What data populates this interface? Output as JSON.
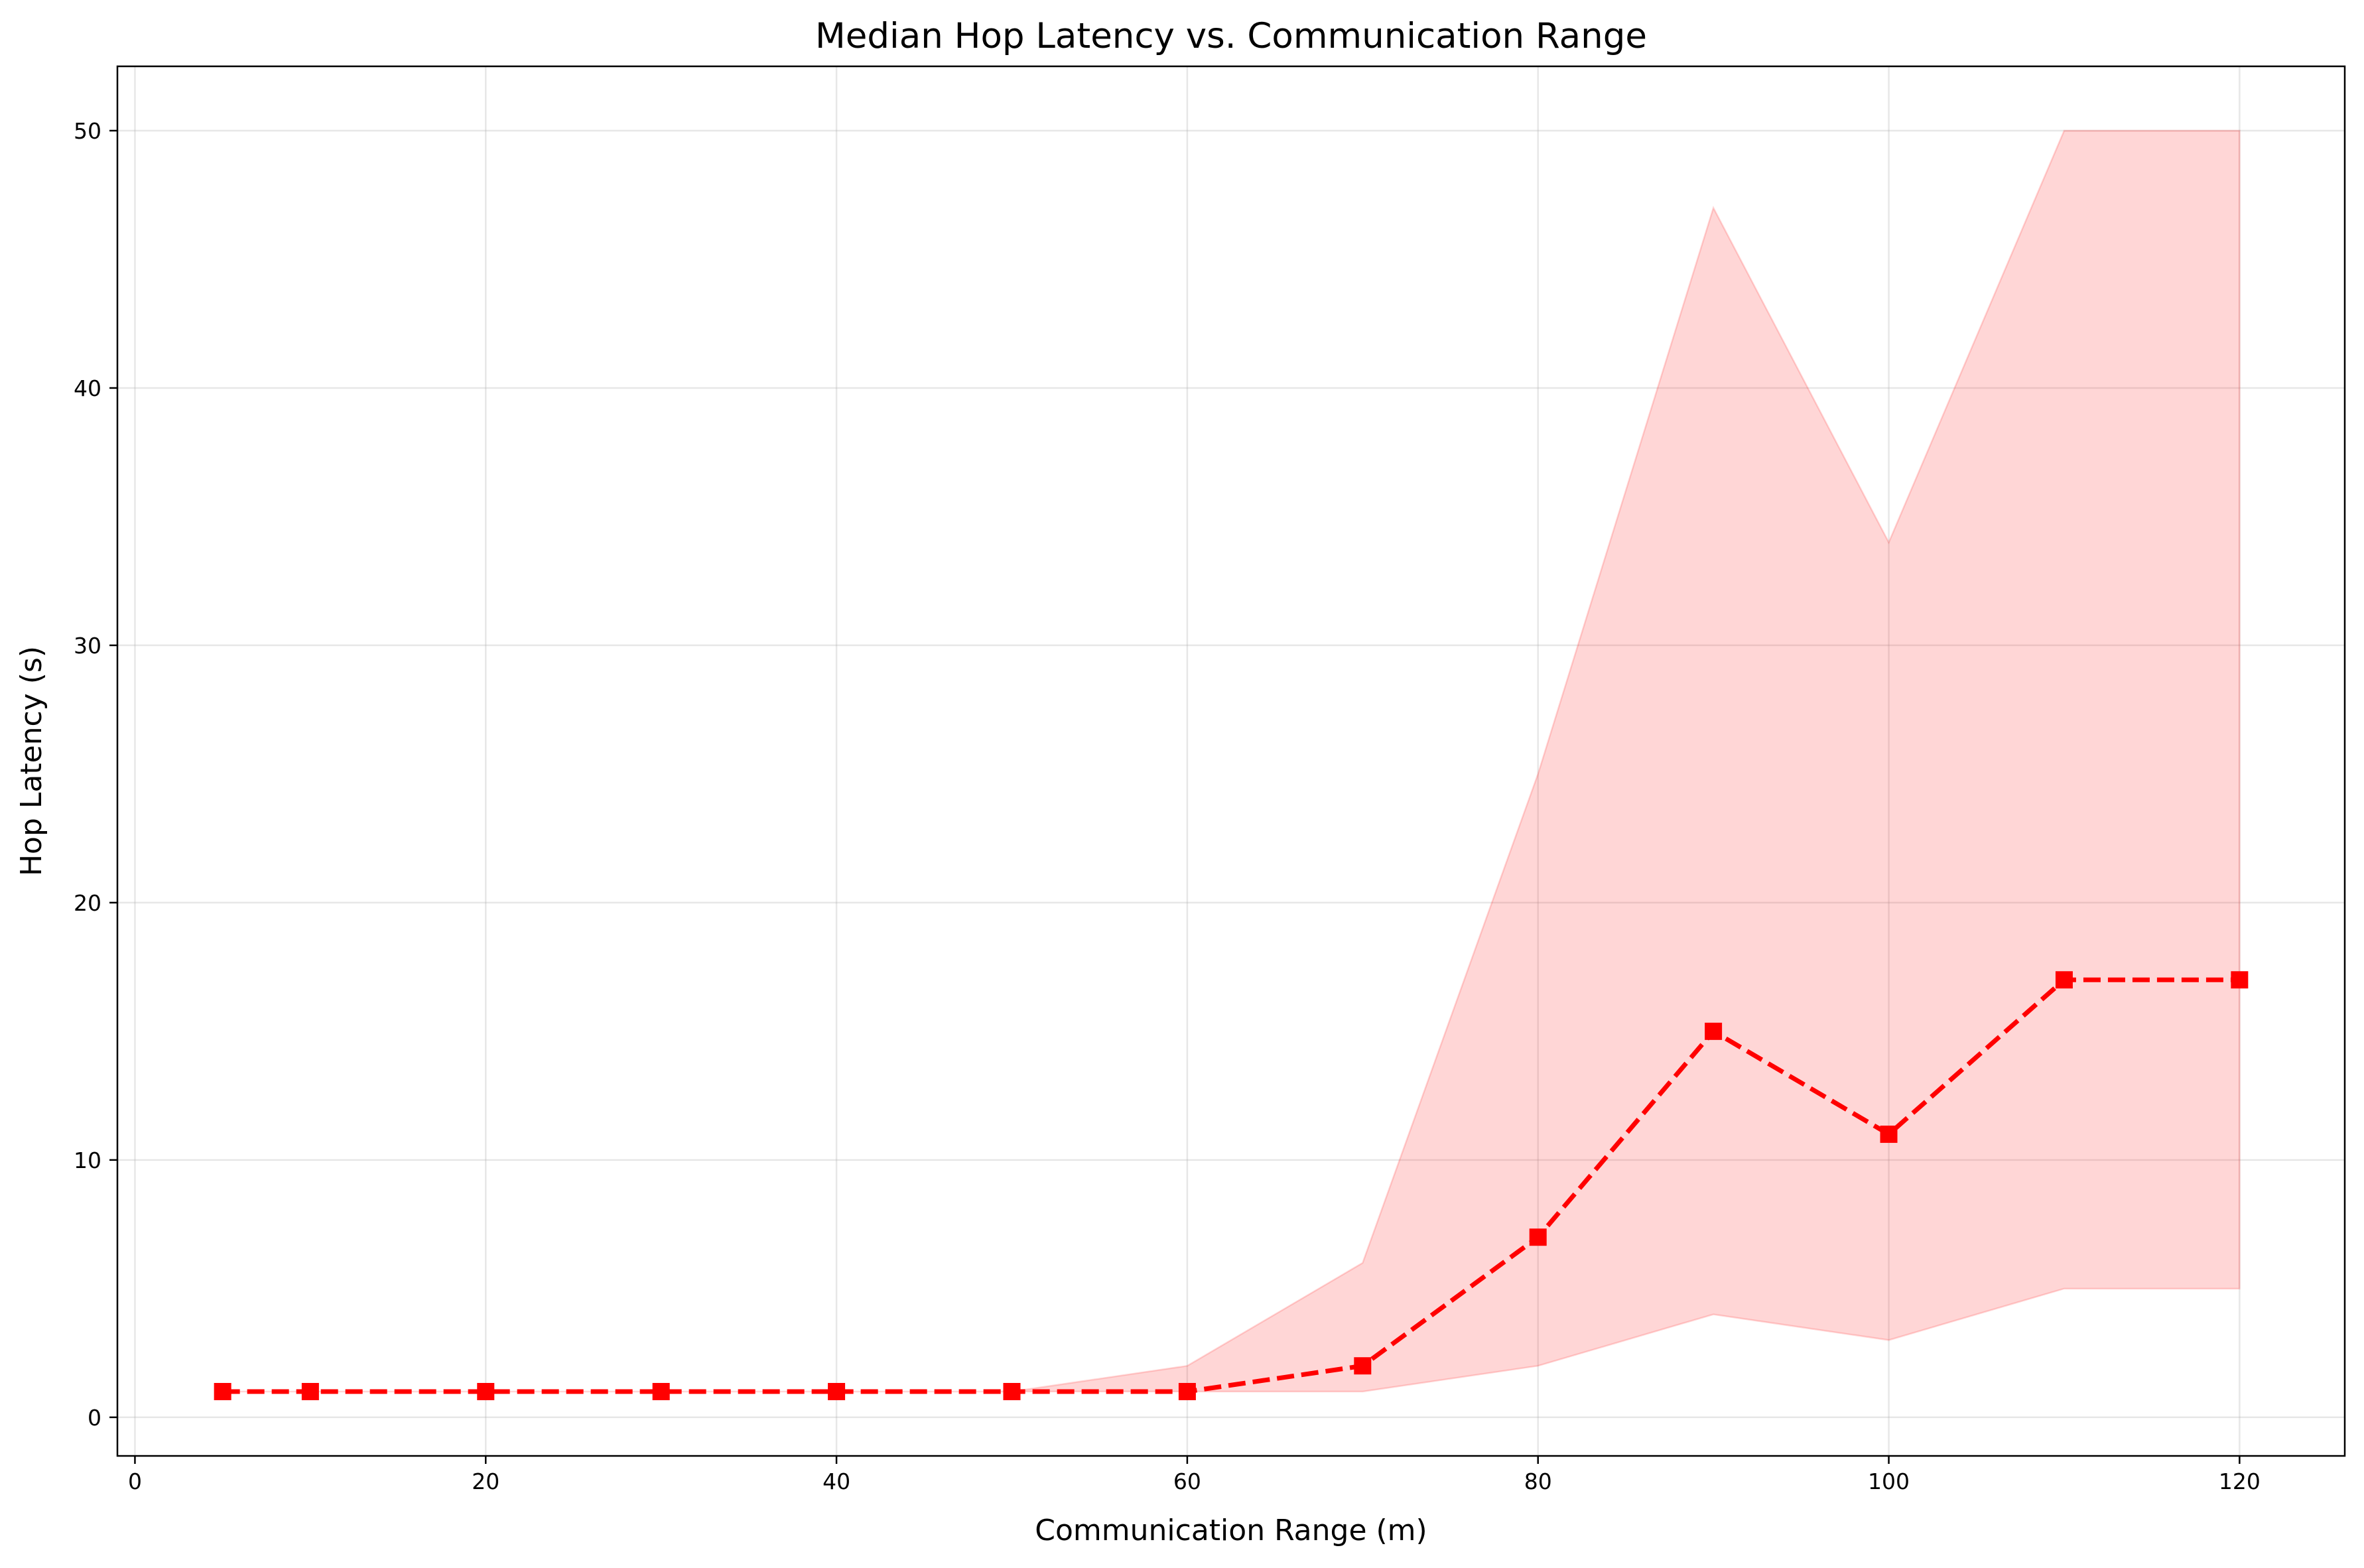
{
  "chart_data": {
    "type": "line",
    "title": "Median Hop Latency vs. Communication Range",
    "xlabel": "Communication Range (m)",
    "ylabel": "Hop Latency (s)",
    "xlim": [
      -1,
      126
    ],
    "ylim": [
      -1.5,
      52.5
    ],
    "xticks": [
      0,
      20,
      40,
      60,
      80,
      100,
      120
    ],
    "yticks": [
      0,
      10,
      20,
      30,
      40,
      50
    ],
    "grid": true,
    "legend": "none",
    "series": [
      {
        "x": [
          5,
          10,
          20,
          30,
          40,
          50,
          60,
          70,
          80,
          90,
          100,
          110,
          120
        ],
        "values": [
          1,
          1,
          1,
          1,
          1,
          1,
          1,
          2,
          7,
          15,
          11,
          17,
          17
        ],
        "lower": [
          1,
          1,
          1,
          1,
          1,
          1,
          1,
          1,
          2,
          4,
          3,
          5,
          5
        ],
        "upper": [
          1,
          1,
          1,
          1,
          1,
          1,
          2,
          6,
          25,
          47,
          34,
          50,
          50
        ],
        "color": "#ff0000",
        "band_color": "#ff0000",
        "line_style": "dashed",
        "marker": "square"
      }
    ]
  }
}
